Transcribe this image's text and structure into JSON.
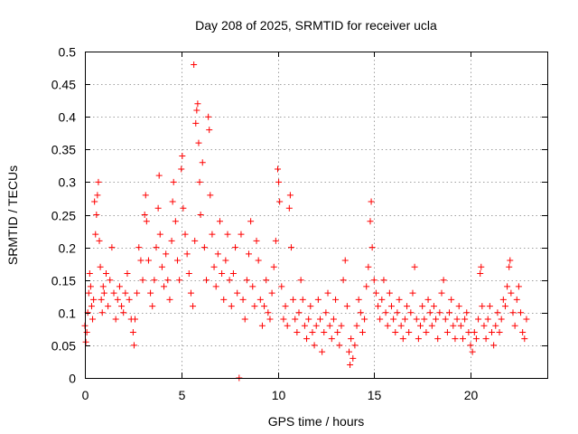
{
  "chart_data": {
    "type": "scatter",
    "title": "Day 208 of 2025, SRMTID for receiver ucla",
    "xlabel": "GPS time / hours",
    "ylabel": "SRMTID / TECUs",
    "xlim": [
      0,
      23.98
    ],
    "ylim": [
      0,
      0.5
    ],
    "xticks": [
      0,
      5,
      10,
      15,
      20
    ],
    "xtick_labels": [
      "0",
      "5",
      "10",
      "15",
      "20"
    ],
    "yticks": [
      0,
      0.05,
      0.1,
      0.15,
      0.2,
      0.25,
      0.3,
      0.35,
      0.4,
      0.45,
      0.5
    ],
    "ytick_labels": [
      "0",
      "0.05",
      "0.1",
      "0.15",
      "0.2",
      "0.25",
      "0.3",
      "0.35",
      "0.4",
      "0.45",
      "0.5"
    ],
    "grid": true,
    "marker": "+",
    "color": "#ff0000",
    "series": [
      {
        "name": "SRMTID",
        "points": [
          [
            0.0,
            0.08
          ],
          [
            0.05,
            0.055
          ],
          [
            0.1,
            0.07
          ],
          [
            0.15,
            0.1
          ],
          [
            0.2,
            0.13
          ],
          [
            0.25,
            0.16
          ],
          [
            0.3,
            0.14
          ],
          [
            0.35,
            0.11
          ],
          [
            0.4,
            0.09
          ],
          [
            0.45,
            0.12
          ],
          [
            0.5,
            0.27
          ],
          [
            0.55,
            0.22
          ],
          [
            0.6,
            0.25
          ],
          [
            0.65,
            0.28
          ],
          [
            0.7,
            0.3
          ],
          [
            0.75,
            0.21
          ],
          [
            0.8,
            0.17
          ],
          [
            0.85,
            0.12
          ],
          [
            0.9,
            0.1
          ],
          [
            0.95,
            0.14
          ],
          [
            1.0,
            0.13
          ],
          [
            1.1,
            0.16
          ],
          [
            1.2,
            0.11
          ],
          [
            1.3,
            0.15
          ],
          [
            1.4,
            0.2
          ],
          [
            1.5,
            0.13
          ],
          [
            1.6,
            0.09
          ],
          [
            1.7,
            0.12
          ],
          [
            1.8,
            0.14
          ],
          [
            1.9,
            0.11
          ],
          [
            2.0,
            0.1
          ],
          [
            2.1,
            0.13
          ],
          [
            2.2,
            0.16
          ],
          [
            2.3,
            0.12
          ],
          [
            2.4,
            0.09
          ],
          [
            2.5,
            0.07
          ],
          [
            2.55,
            0.05
          ],
          [
            2.6,
            0.09
          ],
          [
            2.7,
            0.13
          ],
          [
            2.8,
            0.2
          ],
          [
            2.9,
            0.18
          ],
          [
            3.0,
            0.15
          ],
          [
            3.1,
            0.25
          ],
          [
            3.15,
            0.28
          ],
          [
            3.2,
            0.24
          ],
          [
            3.3,
            0.18
          ],
          [
            3.4,
            0.13
          ],
          [
            3.5,
            0.11
          ],
          [
            3.6,
            0.15
          ],
          [
            3.7,
            0.2
          ],
          [
            3.8,
            0.26
          ],
          [
            3.85,
            0.31
          ],
          [
            3.9,
            0.22
          ],
          [
            4.0,
            0.17
          ],
          [
            4.1,
            0.14
          ],
          [
            4.2,
            0.19
          ],
          [
            4.3,
            0.15
          ],
          [
            4.4,
            0.12
          ],
          [
            4.5,
            0.21
          ],
          [
            4.55,
            0.27
          ],
          [
            4.6,
            0.3
          ],
          [
            4.7,
            0.24
          ],
          [
            4.8,
            0.18
          ],
          [
            4.9,
            0.15
          ],
          [
            5.0,
            0.32
          ],
          [
            5.05,
            0.34
          ],
          [
            5.1,
            0.26
          ],
          [
            5.2,
            0.22
          ],
          [
            5.3,
            0.19
          ],
          [
            5.4,
            0.16
          ],
          [
            5.5,
            0.13
          ],
          [
            5.6,
            0.11
          ],
          [
            5.65,
            0.48
          ],
          [
            5.7,
            0.21
          ],
          [
            5.75,
            0.39
          ],
          [
            5.8,
            0.41
          ],
          [
            5.85,
            0.42
          ],
          [
            5.9,
            0.36
          ],
          [
            5.95,
            0.3
          ],
          [
            6.0,
            0.25
          ],
          [
            6.1,
            0.33
          ],
          [
            6.2,
            0.2
          ],
          [
            6.3,
            0.15
          ],
          [
            6.4,
            0.4
          ],
          [
            6.45,
            0.38
          ],
          [
            6.5,
            0.28
          ],
          [
            6.6,
            0.22
          ],
          [
            6.7,
            0.17
          ],
          [
            6.8,
            0.14
          ],
          [
            6.9,
            0.19
          ],
          [
            7.0,
            0.24
          ],
          [
            7.1,
            0.16
          ],
          [
            7.2,
            0.12
          ],
          [
            7.3,
            0.18
          ],
          [
            7.4,
            0.22
          ],
          [
            7.5,
            0.15
          ],
          [
            7.6,
            0.11
          ],
          [
            7.7,
            0.16
          ],
          [
            7.8,
            0.2
          ],
          [
            7.9,
            0.13
          ],
          [
            8.0,
            0.0
          ],
          [
            8.1,
            0.22
          ],
          [
            8.2,
            0.12
          ],
          [
            8.3,
            0.09
          ],
          [
            8.4,
            0.15
          ],
          [
            8.5,
            0.19
          ],
          [
            8.6,
            0.24
          ],
          [
            8.7,
            0.14
          ],
          [
            8.8,
            0.11
          ],
          [
            8.9,
            0.21
          ],
          [
            9.0,
            0.18
          ],
          [
            9.1,
            0.12
          ],
          [
            9.2,
            0.08
          ],
          [
            9.3,
            0.11
          ],
          [
            9.4,
            0.15
          ],
          [
            9.5,
            0.1
          ],
          [
            9.6,
            0.09
          ],
          [
            9.7,
            0.13
          ],
          [
            9.8,
            0.17
          ],
          [
            9.9,
            0.21
          ],
          [
            10.0,
            0.32
          ],
          [
            10.05,
            0.3
          ],
          [
            10.1,
            0.27
          ],
          [
            10.2,
            0.14
          ],
          [
            10.3,
            0.09
          ],
          [
            10.4,
            0.11
          ],
          [
            10.5,
            0.08
          ],
          [
            10.6,
            0.26
          ],
          [
            10.65,
            0.28
          ],
          [
            10.7,
            0.2
          ],
          [
            10.8,
            0.12
          ],
          [
            10.9,
            0.09
          ],
          [
            11.0,
            0.07
          ],
          [
            11.1,
            0.1
          ],
          [
            11.2,
            0.15
          ],
          [
            11.3,
            0.12
          ],
          [
            11.4,
            0.08
          ],
          [
            11.5,
            0.06
          ],
          [
            11.6,
            0.09
          ],
          [
            11.7,
            0.11
          ],
          [
            11.8,
            0.07
          ],
          [
            11.9,
            0.05
          ],
          [
            12.0,
            0.08
          ],
          [
            12.1,
            0.12
          ],
          [
            12.2,
            0.09
          ],
          [
            12.3,
            0.04
          ],
          [
            12.4,
            0.07
          ],
          [
            12.5,
            0.1
          ],
          [
            12.6,
            0.13
          ],
          [
            12.7,
            0.08
          ],
          [
            12.8,
            0.06
          ],
          [
            12.9,
            0.09
          ],
          [
            13.0,
            0.12
          ],
          [
            13.1,
            0.07
          ],
          [
            13.2,
            0.05
          ],
          [
            13.3,
            0.08
          ],
          [
            13.4,
            0.15
          ],
          [
            13.5,
            0.18
          ],
          [
            13.6,
            0.11
          ],
          [
            13.7,
            0.04
          ],
          [
            13.75,
            0.02
          ],
          [
            13.8,
            0.06
          ],
          [
            13.9,
            0.03
          ],
          [
            14.0,
            0.05
          ],
          [
            14.1,
            0.08
          ],
          [
            14.2,
            0.12
          ],
          [
            14.3,
            0.1
          ],
          [
            14.4,
            0.07
          ],
          [
            14.5,
            0.09
          ],
          [
            14.6,
            0.14
          ],
          [
            14.7,
            0.17
          ],
          [
            14.8,
            0.24
          ],
          [
            14.85,
            0.27
          ],
          [
            14.9,
            0.2
          ],
          [
            15.0,
            0.15
          ],
          [
            15.1,
            0.13
          ],
          [
            15.2,
            0.11
          ],
          [
            15.3,
            0.09
          ],
          [
            15.4,
            0.12
          ],
          [
            15.5,
            0.15
          ],
          [
            15.6,
            0.1
          ],
          [
            15.7,
            0.08
          ],
          [
            15.8,
            0.13
          ],
          [
            15.9,
            0.11
          ],
          [
            16.0,
            0.09
          ],
          [
            16.1,
            0.07
          ],
          [
            16.2,
            0.1
          ],
          [
            16.3,
            0.12
          ],
          [
            16.4,
            0.08
          ],
          [
            16.5,
            0.06
          ],
          [
            16.6,
            0.09
          ],
          [
            16.7,
            0.11
          ],
          [
            16.8,
            0.07
          ],
          [
            16.9,
            0.1
          ],
          [
            17.0,
            0.13
          ],
          [
            17.1,
            0.17
          ],
          [
            17.2,
            0.09
          ],
          [
            17.3,
            0.06
          ],
          [
            17.4,
            0.08
          ],
          [
            17.5,
            0.11
          ],
          [
            17.6,
            0.09
          ],
          [
            17.7,
            0.07
          ],
          [
            17.8,
            0.12
          ],
          [
            17.9,
            0.1
          ],
          [
            18.0,
            0.08
          ],
          [
            18.1,
            0.11
          ],
          [
            18.2,
            0.09
          ],
          [
            18.3,
            0.06
          ],
          [
            18.4,
            0.1
          ],
          [
            18.5,
            0.13
          ],
          [
            18.6,
            0.15
          ],
          [
            18.7,
            0.09
          ],
          [
            18.8,
            0.07
          ],
          [
            18.9,
            0.1
          ],
          [
            19.0,
            0.12
          ],
          [
            19.1,
            0.08
          ],
          [
            19.2,
            0.06
          ],
          [
            19.3,
            0.09
          ],
          [
            19.4,
            0.11
          ],
          [
            19.5,
            0.08
          ],
          [
            19.6,
            0.06
          ],
          [
            19.7,
            0.09
          ],
          [
            19.8,
            0.1
          ],
          [
            19.9,
            0.07
          ],
          [
            20.0,
            0.05
          ],
          [
            20.1,
            0.04
          ],
          [
            20.2,
            0.07
          ],
          [
            20.3,
            0.06
          ],
          [
            20.4,
            0.09
          ],
          [
            20.5,
            0.16
          ],
          [
            20.55,
            0.17
          ],
          [
            20.6,
            0.11
          ],
          [
            20.7,
            0.08
          ],
          [
            20.8,
            0.06
          ],
          [
            20.9,
            0.09
          ],
          [
            21.0,
            0.11
          ],
          [
            21.1,
            0.07
          ],
          [
            21.2,
            0.05
          ],
          [
            21.3,
            0.08
          ],
          [
            21.4,
            0.1
          ],
          [
            21.5,
            0.07
          ],
          [
            21.6,
            0.09
          ],
          [
            21.7,
            0.12
          ],
          [
            21.8,
            0.11
          ],
          [
            21.9,
            0.14
          ],
          [
            22.0,
            0.17
          ],
          [
            22.05,
            0.18
          ],
          [
            22.1,
            0.13
          ],
          [
            22.2,
            0.1
          ],
          [
            22.3,
            0.08
          ],
          [
            22.4,
            0.12
          ],
          [
            22.5,
            0.14
          ],
          [
            22.6,
            0.1
          ],
          [
            22.7,
            0.07
          ],
          [
            22.8,
            0.06
          ],
          [
            22.9,
            0.09
          ]
        ]
      }
    ]
  }
}
